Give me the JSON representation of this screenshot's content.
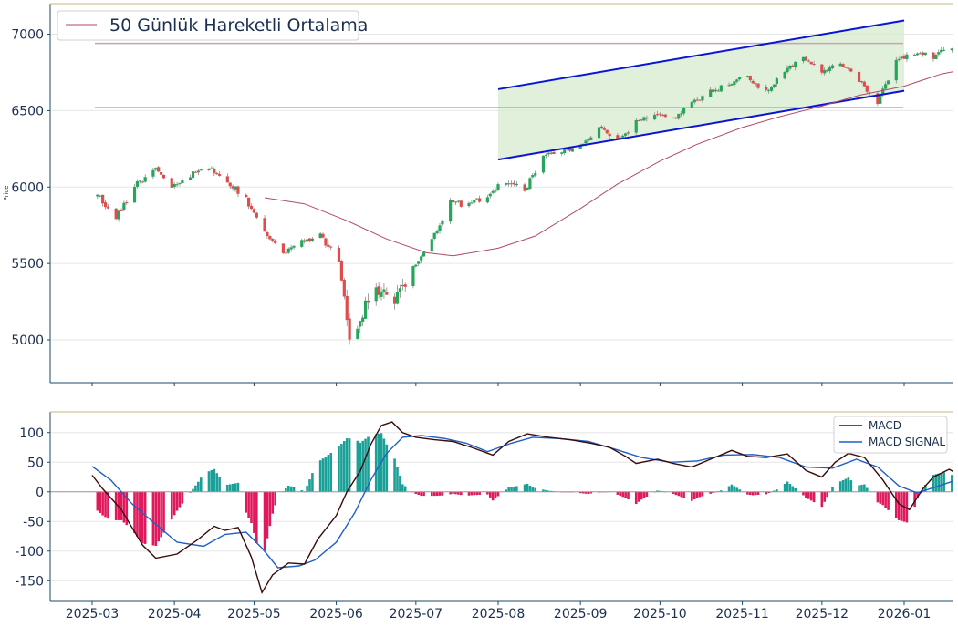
{
  "colors": {
    "up": "#26a65b",
    "down": "#e04c4c",
    "ma": "#b24a6a",
    "channel_line": "#0a14d4",
    "channel_fill": "#d6ebcf",
    "hline": "#c9a3b3",
    "macd": "#3b0a0a",
    "signal": "#1e5fc8",
    "hist_pos": "#1aa096",
    "hist_neg": "#e0185c",
    "axis": "#1b4a6b",
    "tick_text": "#1b2f50",
    "grid": "#e6e6e6",
    "top_border": "#d8cfa8"
  },
  "chart_data": [
    {
      "type": "candlestick",
      "ylabel": "Price",
      "ylim": [
        4720,
        7200
      ],
      "yticks": [
        5000,
        5500,
        6000,
        6500,
        7000
      ],
      "grid": "horizontal",
      "legend": {
        "placement": "top-left",
        "entries": [
          "50 Günlük Hareketli Ortalama"
        ]
      },
      "horizontal_lines": [
        6940,
        6520
      ],
      "channel": {
        "x_start": "2025-08-01",
        "x_end": "2026-01-01",
        "upper": [
          6640,
          7090
        ],
        "lower": [
          6180,
          6630
        ]
      },
      "anchors": [
        [
          "2025-03-03",
          5950
        ],
        [
          "2025-03-10",
          5800
        ],
        [
          "2025-03-18",
          6020
        ],
        [
          "2025-03-25",
          6110
        ],
        [
          "2025-03-31",
          6010
        ],
        [
          "2025-04-07",
          6080
        ],
        [
          "2025-04-14",
          6120
        ],
        [
          "2025-04-21",
          6040
        ],
        [
          "2025-04-28",
          5920
        ],
        [
          "2025-05-05",
          5700
        ],
        [
          "2025-05-12",
          5560
        ],
        [
          "2025-05-19",
          5640
        ],
        [
          "2025-05-26",
          5680
        ],
        [
          "2025-06-02",
          5520
        ],
        [
          "2025-06-06",
          4960
        ],
        [
          "2025-06-10",
          5150
        ],
        [
          "2025-06-16",
          5350
        ],
        [
          "2025-06-23",
          5250
        ],
        [
          "2025-06-30",
          5480
        ],
        [
          "2025-07-07",
          5650
        ],
        [
          "2025-07-14",
          5900
        ],
        [
          "2025-07-21",
          5880
        ],
        [
          "2025-07-28",
          5950
        ],
        [
          "2025-08-04",
          6040
        ],
        [
          "2025-08-11",
          5980
        ],
        [
          "2025-08-18",
          6200
        ],
        [
          "2025-08-25",
          6240
        ],
        [
          "2025-09-01",
          6270
        ],
        [
          "2025-09-08",
          6380
        ],
        [
          "2025-09-15",
          6300
        ],
        [
          "2025-09-22",
          6420
        ],
        [
          "2025-09-29",
          6470
        ],
        [
          "2025-10-06",
          6440
        ],
        [
          "2025-10-13",
          6560
        ],
        [
          "2025-10-20",
          6620
        ],
        [
          "2025-10-27",
          6680
        ],
        [
          "2025-11-03",
          6720
        ],
        [
          "2025-11-10",
          6620
        ],
        [
          "2025-11-17",
          6760
        ],
        [
          "2025-11-24",
          6850
        ],
        [
          "2025-12-01",
          6760
        ],
        [
          "2025-12-08",
          6810
        ],
        [
          "2025-12-15",
          6700
        ],
        [
          "2025-12-22",
          6550
        ],
        [
          "2025-12-29",
          6830
        ],
        [
          "2026-01-05",
          6880
        ],
        [
          "2026-01-12",
          6850
        ],
        [
          "2026-01-19",
          6920
        ],
        [
          "2026-01-26",
          6890
        ],
        [
          "2026-02-02",
          6860
        ]
      ],
      "ma50": [
        [
          "2025-05-05",
          5930
        ],
        [
          "2025-05-20",
          5890
        ],
        [
          "2025-06-05",
          5780
        ],
        [
          "2025-06-20",
          5660
        ],
        [
          "2025-07-05",
          5570
        ],
        [
          "2025-07-15",
          5550
        ],
        [
          "2025-08-01",
          5600
        ],
        [
          "2025-08-15",
          5680
        ],
        [
          "2025-09-01",
          5860
        ],
        [
          "2025-09-15",
          6020
        ],
        [
          "2025-10-01",
          6170
        ],
        [
          "2025-10-15",
          6280
        ],
        [
          "2025-11-01",
          6390
        ],
        [
          "2025-11-15",
          6460
        ],
        [
          "2025-12-01",
          6530
        ],
        [
          "2025-12-15",
          6600
        ],
        [
          "2026-01-01",
          6660
        ],
        [
          "2026-01-15",
          6740
        ],
        [
          "2026-02-02",
          6800
        ]
      ]
    },
    {
      "type": "line+bar",
      "ylim": [
        -185,
        135
      ],
      "yticks": [
        100,
        50,
        0,
        -50,
        -100,
        -150
      ],
      "xticks": [
        "2025-03",
        "2025-04",
        "2025-05",
        "2025-06",
        "2025-07",
        "2025-08",
        "2025-09",
        "2025-10",
        "2025-11",
        "2025-12",
        "2026-01"
      ],
      "legend": {
        "placement": "top-right"
      },
      "series": [
        {
          "name": "MACD",
          "points": [
            [
              "2025-03-01",
              28
            ],
            [
              "2025-03-05",
              5
            ],
            [
              "2025-03-12",
              -30
            ],
            [
              "2025-03-20",
              -90
            ],
            [
              "2025-03-25",
              -112
            ],
            [
              "2025-04-02",
              -105
            ],
            [
              "2025-04-10",
              -80
            ],
            [
              "2025-04-16",
              -58
            ],
            [
              "2025-04-20",
              -65
            ],
            [
              "2025-04-25",
              -60
            ],
            [
              "2025-04-30",
              -110
            ],
            [
              "2025-05-04",
              -170
            ],
            [
              "2025-05-08",
              -140
            ],
            [
              "2025-05-14",
              -120
            ],
            [
              "2025-05-20",
              -122
            ],
            [
              "2025-05-25",
              -80
            ],
            [
              "2025-06-01",
              -40
            ],
            [
              "2025-06-05",
              0
            ],
            [
              "2025-06-10",
              35
            ],
            [
              "2025-06-14",
              80
            ],
            [
              "2025-06-18",
              112
            ],
            [
              "2025-06-22",
              118
            ],
            [
              "2025-06-26",
              100
            ],
            [
              "2025-07-01",
              92
            ],
            [
              "2025-07-08",
              88
            ],
            [
              "2025-07-15",
              85
            ],
            [
              "2025-07-22",
              75
            ],
            [
              "2025-07-30",
              62
            ],
            [
              "2025-08-05",
              85
            ],
            [
              "2025-08-12",
              98
            ],
            [
              "2025-08-20",
              92
            ],
            [
              "2025-08-28",
              88
            ],
            [
              "2025-09-05",
              82
            ],
            [
              "2025-09-12",
              75
            ],
            [
              "2025-09-18",
              60
            ],
            [
              "2025-09-22",
              48
            ],
            [
              "2025-09-30",
              55
            ],
            [
              "2025-10-06",
              48
            ],
            [
              "2025-10-13",
              42
            ],
            [
              "2025-10-20",
              55
            ],
            [
              "2025-10-28",
              70
            ],
            [
              "2025-11-03",
              60
            ],
            [
              "2025-11-10",
              58
            ],
            [
              "2025-11-18",
              64
            ],
            [
              "2025-11-25",
              36
            ],
            [
              "2025-12-01",
              25
            ],
            [
              "2025-12-06",
              50
            ],
            [
              "2025-12-11",
              65
            ],
            [
              "2025-12-17",
              58
            ],
            [
              "2025-12-24",
              20
            ],
            [
              "2025-12-30",
              -20
            ],
            [
              "2026-01-03",
              -30
            ],
            [
              "2026-01-08",
              5
            ],
            [
              "2026-01-12",
              25
            ],
            [
              "2026-01-18",
              38
            ],
            [
              "2026-01-23",
              25
            ],
            [
              "2026-01-28",
              30
            ],
            [
              "2026-02-02",
              35
            ],
            [
              "2026-02-05",
              28
            ]
          ]
        },
        {
          "name": "MACD SIGNAL",
          "points": [
            [
              "2025-03-01",
              43
            ],
            [
              "2025-03-08",
              20
            ],
            [
              "2025-03-16",
              -20
            ],
            [
              "2025-03-25",
              -55
            ],
            [
              "2025-04-02",
              -85
            ],
            [
              "2025-04-12",
              -92
            ],
            [
              "2025-04-20",
              -72
            ],
            [
              "2025-04-28",
              -68
            ],
            [
              "2025-05-04",
              -95
            ],
            [
              "2025-05-10",
              -128
            ],
            [
              "2025-05-18",
              -125
            ],
            [
              "2025-05-24",
              -115
            ],
            [
              "2025-06-01",
              -85
            ],
            [
              "2025-06-08",
              -35
            ],
            [
              "2025-06-14",
              20
            ],
            [
              "2025-06-20",
              65
            ],
            [
              "2025-06-26",
              92
            ],
            [
              "2025-07-03",
              95
            ],
            [
              "2025-07-12",
              90
            ],
            [
              "2025-07-20",
              82
            ],
            [
              "2025-07-28",
              68
            ],
            [
              "2025-08-06",
              82
            ],
            [
              "2025-08-14",
              92
            ],
            [
              "2025-08-24",
              90
            ],
            [
              "2025-09-04",
              85
            ],
            [
              "2025-09-14",
              72
            ],
            [
              "2025-09-24",
              58
            ],
            [
              "2025-10-05",
              50
            ],
            [
              "2025-10-15",
              52
            ],
            [
              "2025-10-25",
              62
            ],
            [
              "2025-11-05",
              63
            ],
            [
              "2025-11-15",
              58
            ],
            [
              "2025-11-25",
              42
            ],
            [
              "2025-12-05",
              40
            ],
            [
              "2025-12-14",
              55
            ],
            [
              "2025-12-22",
              42
            ],
            [
              "2025-12-30",
              10
            ],
            [
              "2026-01-06",
              -2
            ],
            [
              "2026-01-14",
              10
            ],
            [
              "2026-01-22",
              22
            ],
            [
              "2026-02-05",
              28
            ]
          ]
        }
      ]
    }
  ]
}
